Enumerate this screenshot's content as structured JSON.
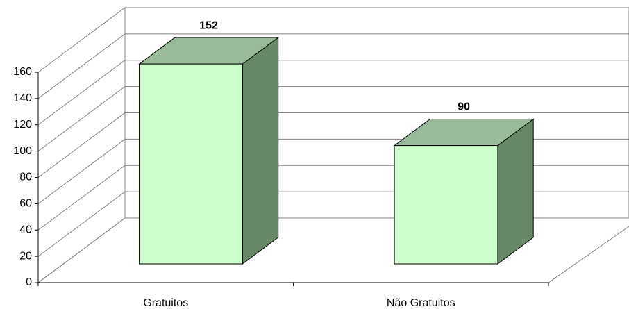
{
  "chart_data": {
    "type": "bar3d",
    "categories": [
      "Gratuitos",
      "Não Gratuitos"
    ],
    "values": [
      152,
      90
    ],
    "colors": {
      "front": "#ccffcc",
      "top": "#99bb99",
      "side": "#668866"
    },
    "ylim": [
      0,
      160
    ],
    "yticks": [
      0,
      20,
      40,
      60,
      80,
      100,
      120,
      140,
      160
    ],
    "grid": true
  }
}
